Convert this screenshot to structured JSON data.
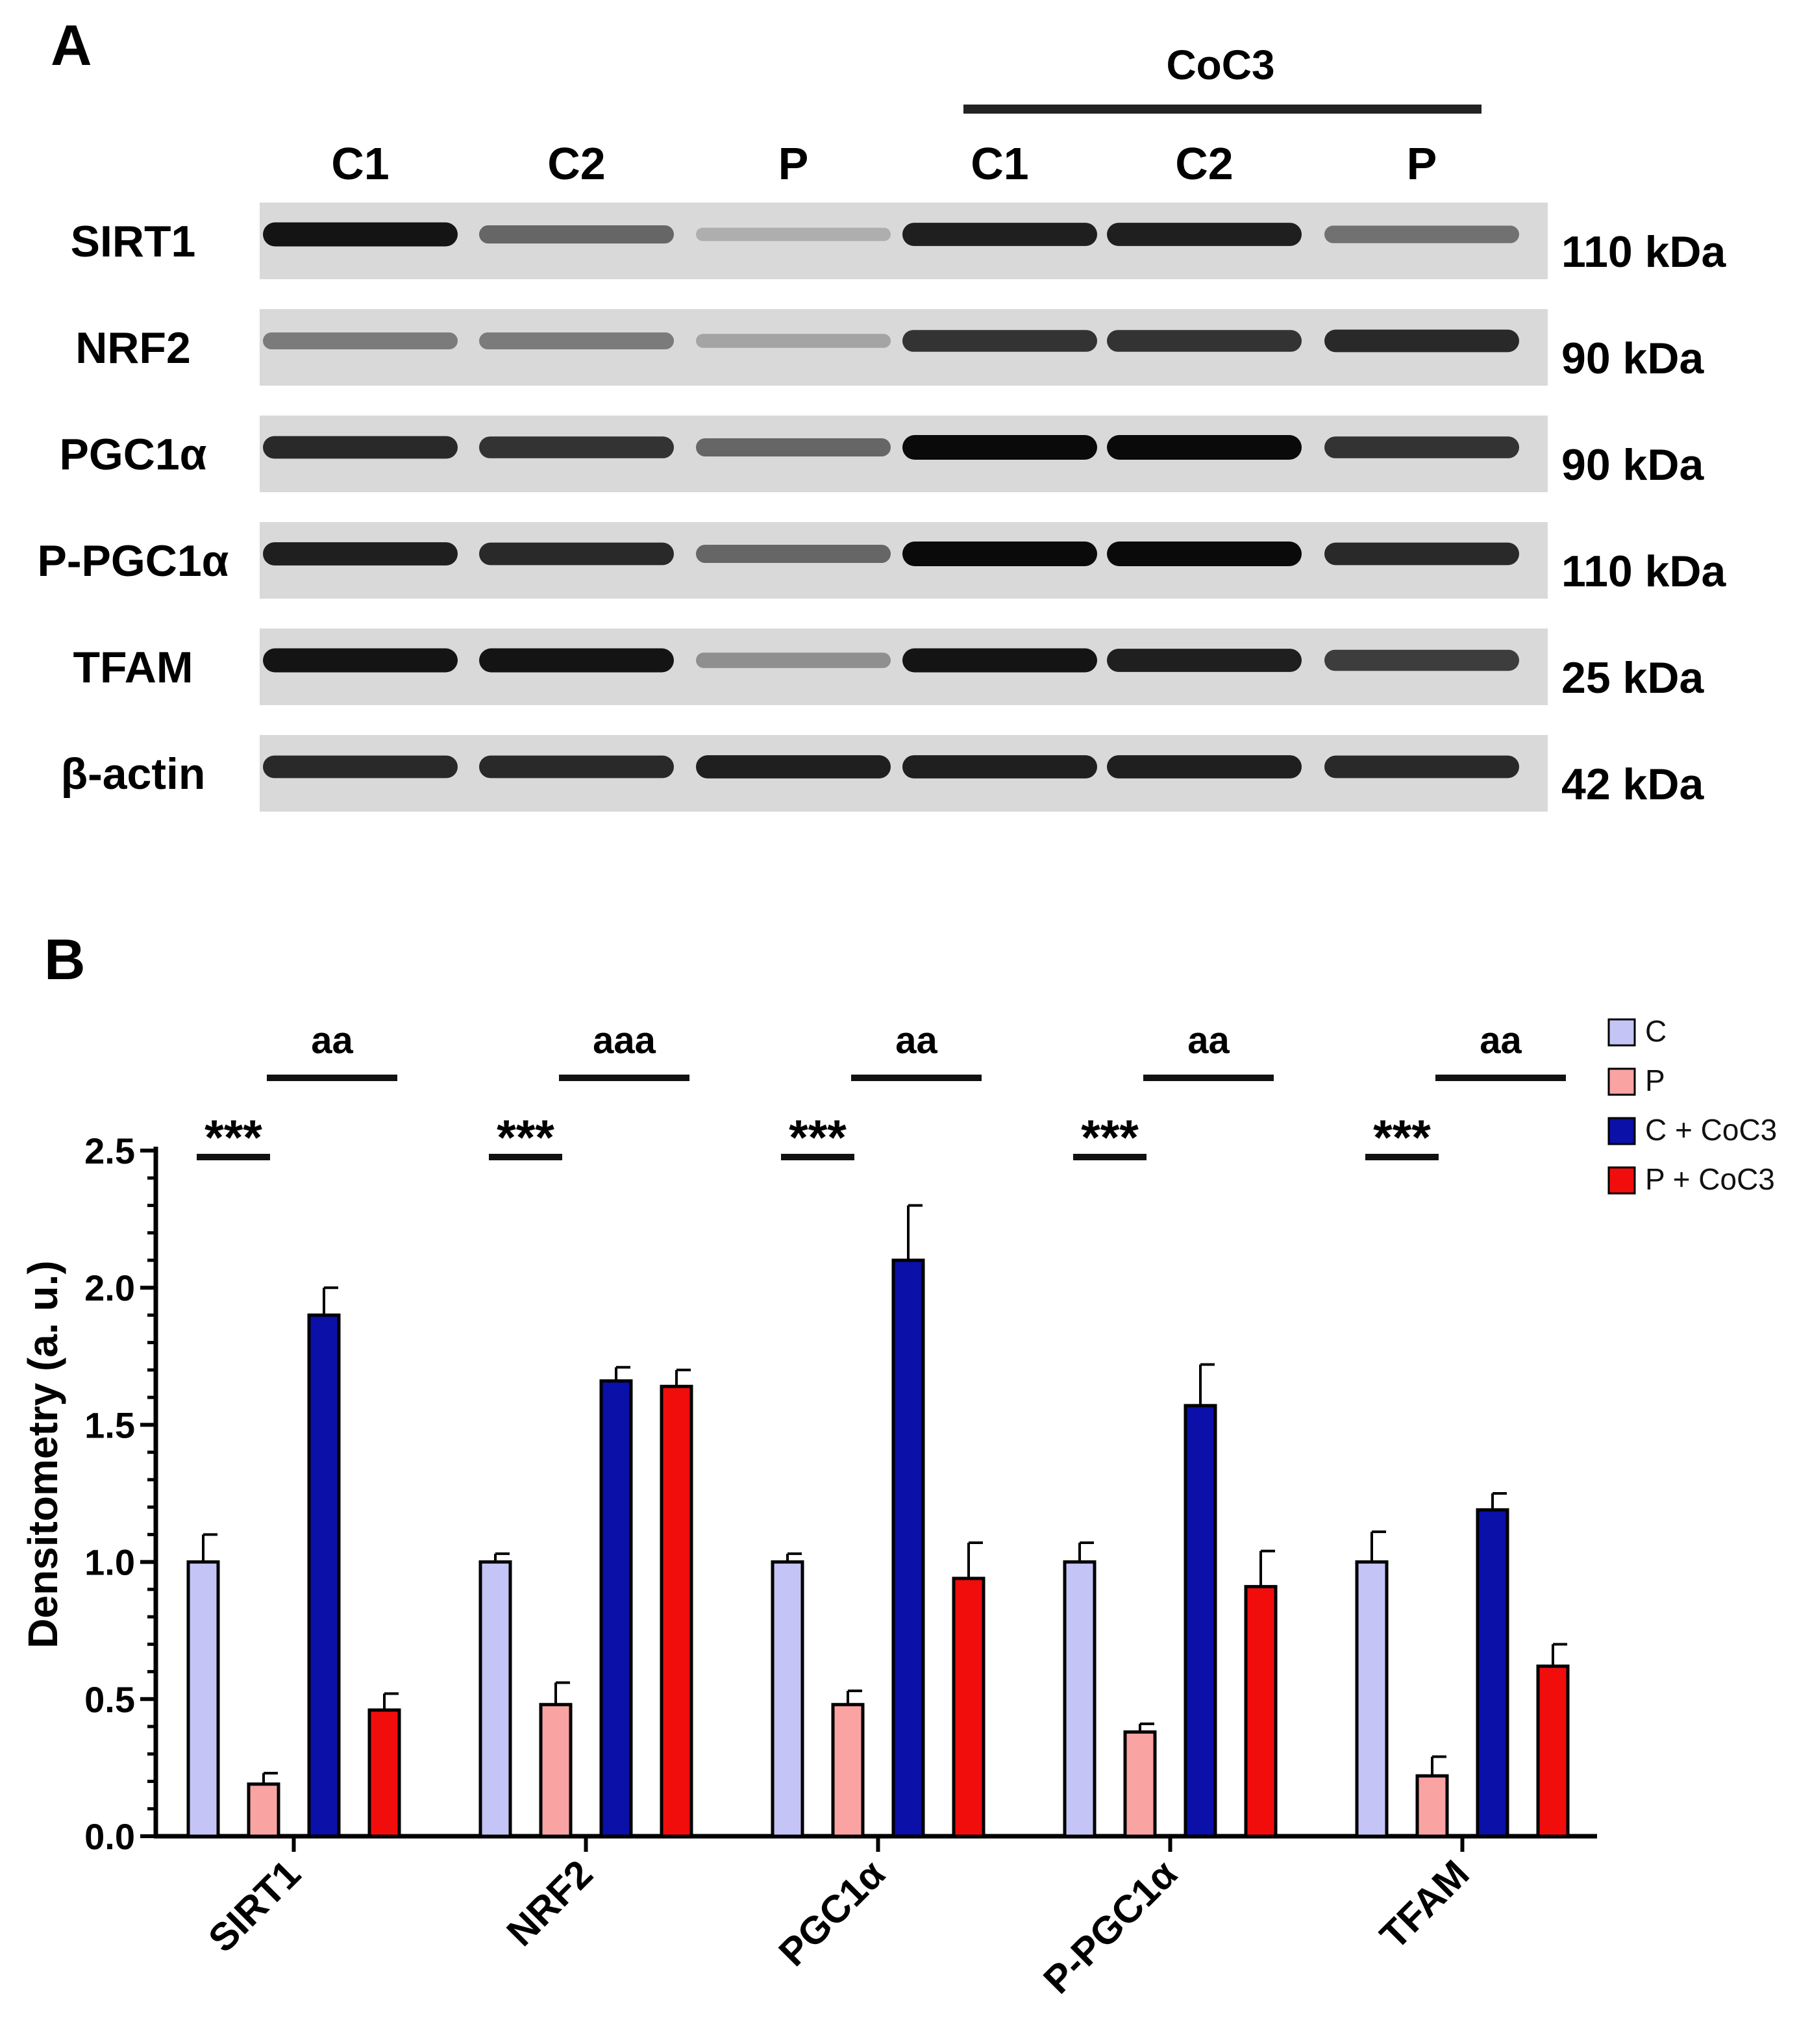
{
  "panel_a": {
    "label": "A",
    "group_label": "CoC3",
    "lanes": [
      "C1",
      "C2",
      "P",
      "C1",
      "C2",
      "P"
    ],
    "blots": [
      {
        "protein": "SIRT1",
        "weight": "110 kDa",
        "intensity": [
          0.95,
          0.55,
          0.2,
          0.9,
          0.9,
          0.5
        ]
      },
      {
        "protein": "NRF2",
        "weight": "90 kDa",
        "intensity": [
          0.45,
          0.45,
          0.25,
          0.8,
          0.8,
          0.85
        ]
      },
      {
        "protein": "PGC1α",
        "weight": "90 kDa",
        "intensity": [
          0.85,
          0.8,
          0.55,
          1.0,
          1.0,
          0.8
        ]
      },
      {
        "protein": "P-PGC1α",
        "weight": "110 kDa",
        "intensity": [
          0.9,
          0.85,
          0.55,
          1.0,
          1.0,
          0.85
        ]
      },
      {
        "protein": "TFAM",
        "weight": "25 kDa",
        "intensity": [
          0.95,
          0.95,
          0.35,
          0.95,
          0.9,
          0.75
        ]
      },
      {
        "protein": "β-actin",
        "weight": "42 kDa",
        "intensity": [
          0.85,
          0.85,
          0.9,
          0.9,
          0.9,
          0.85
        ]
      }
    ]
  },
  "chart_data": {
    "panel_label": "B",
    "type": "bar",
    "ylabel": "Densitometry (a. u.)",
    "ylim": [
      0,
      2.5
    ],
    "yticks": [
      "0.0",
      "0.5",
      "1.0",
      "1.5",
      "2.0",
      "2.5"
    ],
    "categories": [
      "SIRT1",
      "NRF2",
      "PGC1α",
      "P-PGC1α",
      "TFAM"
    ],
    "legend_position": "top-right",
    "series": [
      {
        "name": "C",
        "color": "#c4c4f6",
        "values": [
          1.0,
          1.0,
          1.0,
          1.0,
          1.0
        ],
        "errors": [
          0.1,
          0.03,
          0.03,
          0.07,
          0.11
        ]
      },
      {
        "name": "P",
        "color": "#f9a3a3",
        "values": [
          0.19,
          0.48,
          0.48,
          0.38,
          0.22
        ],
        "errors": [
          0.04,
          0.08,
          0.05,
          0.03,
          0.07
        ]
      },
      {
        "name": "C + CoC3",
        "color": "#0a10a8",
        "values": [
          1.9,
          1.66,
          2.1,
          1.57,
          1.19
        ],
        "errors": [
          0.1,
          0.05,
          0.2,
          0.15,
          0.06
        ]
      },
      {
        "name": "P + CoC3",
        "color": "#f20d0d",
        "values": [
          0.46,
          1.64,
          0.94,
          0.91,
          0.62
        ],
        "errors": [
          0.06,
          0.06,
          0.13,
          0.13,
          0.08
        ]
      }
    ],
    "annotations": {
      "c_vs_p": [
        "***",
        "***",
        "***",
        "***",
        "***"
      ],
      "p_vs_pcoc3": [
        "aa",
        "aaa",
        "aa",
        "aa",
        "aa"
      ]
    }
  }
}
